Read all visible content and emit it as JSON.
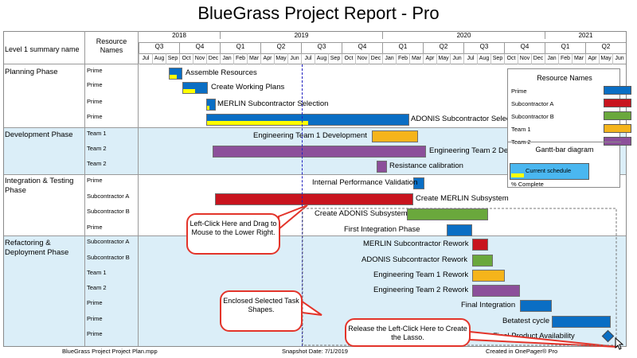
{
  "title": "BlueGrass Project Report - Pro",
  "header": {
    "col1": "Level 1 summary name",
    "col2": "Resource Names",
    "years": [
      "2018",
      "2019",
      "2020",
      "2021"
    ],
    "quarters": [
      "Q3",
      "Q4",
      "Q1",
      "Q2",
      "Q3",
      "Q4",
      "Q1",
      "Q2",
      "Q3",
      "Q4",
      "Q1",
      "Q2"
    ],
    "months": [
      "Jul",
      "Aug",
      "Sep",
      "Oct",
      "Nov",
      "Dec",
      "Jan",
      "Feb",
      "Mar",
      "Apr",
      "May",
      "Jun",
      "Jul",
      "Aug",
      "Sep",
      "Oct",
      "Nov",
      "Dec",
      "Jan",
      "Feb",
      "Mar",
      "Apr",
      "May",
      "Jun",
      "Jul",
      "Aug",
      "Sep",
      "Oct",
      "Nov",
      "Dec",
      "Jan",
      "Feb",
      "Mar",
      "Apr",
      "May",
      "Jun"
    ]
  },
  "phases": [
    {
      "name": "Planning Phase"
    },
    {
      "name": "Development Phase"
    },
    {
      "name": "Integration & Testing Phase"
    },
    {
      "name": "Refactoring & Deployment Phase"
    }
  ],
  "resources": [
    "Prime",
    "Prime",
    "Prime",
    "Prime",
    "Team 1",
    "Team 2",
    "Team 2",
    "Prime",
    "Subcontractor A",
    "Subcontractor B",
    "Prime",
    "Subcontractor A",
    "Subcontractor B",
    "Team 1",
    "Team 2",
    "Prime",
    "Prime",
    "Prime"
  ],
  "tasks": [
    {
      "label": "Assemble Resources",
      "resource": "Prime",
      "start": "2018-08",
      "progress": 0.6
    },
    {
      "label": "Create Working Plans",
      "resource": "Prime",
      "start": "2018-09",
      "progress": 0.5
    },
    {
      "label": "MERLIN Subcontractor Selection",
      "resource": "Prime",
      "start": "2018-11",
      "progress": 0.3
    },
    {
      "label": "ADONIS Subcontractor Selection",
      "resource": "Prime",
      "start": "2018-11",
      "progress": 0.5
    },
    {
      "label": "Engineering Team 1 Development",
      "resource": "Team 1",
      "start": "2019-10",
      "progress": 0
    },
    {
      "label": "Engineering Team 2 Development",
      "resource": "Team 2",
      "start": "2018-12",
      "progress": 0
    },
    {
      "label": "Resistance calibration",
      "resource": "Team 2",
      "start": "2019-10",
      "progress": 0
    },
    {
      "label": "Internal Performance Validation",
      "resource": "Prime",
      "start": "2020-01",
      "progress": 0
    },
    {
      "label": "Create MERLIN Subsystem",
      "resource": "Subcontractor A",
      "start": "2018-12",
      "progress": 0
    },
    {
      "label": "Create ADONIS Subsystem",
      "resource": "Subcontractor B",
      "start": "2020-01",
      "progress": 0
    },
    {
      "label": "First Integration Phase",
      "resource": "Prime",
      "start": "2020-04",
      "progress": 0
    },
    {
      "label": "MERLIN Subcontractor Rework",
      "resource": "Subcontractor A",
      "start": "2020-06",
      "progress": 0
    },
    {
      "label": "ADONIS Subcontractor Rework",
      "resource": "Subcontractor B",
      "start": "2020-06",
      "progress": 0
    },
    {
      "label": "Engineering Team 1 Rework",
      "resource": "Team 1",
      "start": "2020-06",
      "progress": 0
    },
    {
      "label": "Engineering Team 2 Rework",
      "resource": "Team 2",
      "start": "2020-06",
      "progress": 0
    },
    {
      "label": "Final Integration",
      "resource": "Prime",
      "start": "2020-09",
      "progress": 0
    },
    {
      "label": "Betatest cycle",
      "resource": "Prime",
      "start": "2020-10",
      "progress": 0
    },
    {
      "label": "Final Product Availability",
      "resource": "Prime",
      "start": "2021-06",
      "progress": 0
    }
  ],
  "legend": {
    "title": "Resource Names",
    "items": [
      {
        "label": "Prime",
        "color": "#0a6ec4"
      },
      {
        "label": "Subcontractor A",
        "color": "#c8141e"
      },
      {
        "label": "Subcontractor B",
        "color": "#6aa83c"
      },
      {
        "label": "Team 1",
        "color": "#f5b41b"
      },
      {
        "label": "Team 2",
        "color": "#8c4f9a"
      }
    ],
    "gantt_title": "Gantt-bar diagram",
    "current_schedule": "Current schedule",
    "pct_complete": "% Complete"
  },
  "callouts": {
    "drag": "Left-Click Here and Drag to Mouse to the Lower Right.",
    "enclosed": "Enclosed Selected Task Shapes.",
    "release": "Release the Left-Click Here to Create the Lasso."
  },
  "footer": {
    "left": "BlueGrass Project Project Plan.mpp",
    "center": "Snapshot Date: 7/1/2019",
    "right": "Created in OnePager® Pro"
  },
  "colors": {
    "accent": "#0a6ec4",
    "band": "#dbeef8",
    "snapshot_line": "#2020c0",
    "callout": "#e3342a",
    "progress": "#ffff00"
  }
}
